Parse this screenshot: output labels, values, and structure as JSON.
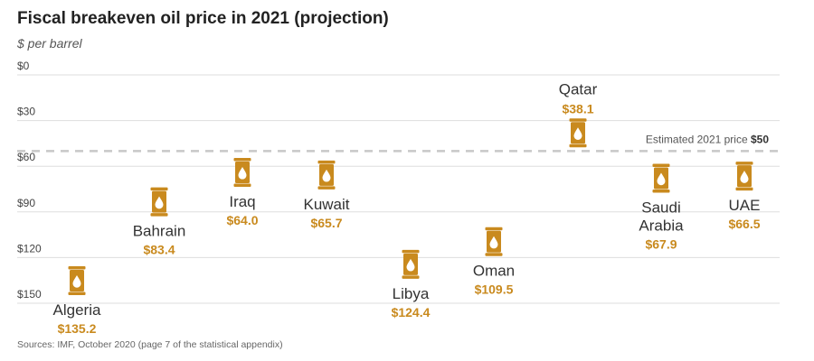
{
  "header": {
    "title": "Fiscal breakeven oil price in 2021 (projection)",
    "subtitle": "$ per barrel"
  },
  "source": "Sources: IMF, October 2020 (page 7 of the statistical appendix)",
  "reference": {
    "label": "Estimated 2021 price",
    "value_label": "$50"
  },
  "colors": {
    "barrel": "#c98a1e",
    "value_text": "#c98a1e",
    "grid": "#dddddd",
    "reference_line": "#c8c8c8"
  },
  "icon": "oil-barrel-icon",
  "chart_data": {
    "type": "scatter",
    "title": "Fiscal breakeven oil price in 2021 (projection)",
    "subtitle": "$ per barrel",
    "ylabel": "$ per barrel",
    "y_inverted": true,
    "ylim": [
      0,
      150
    ],
    "y_ticks": [
      0,
      30,
      60,
      90,
      120,
      150
    ],
    "y_tick_labels": [
      "$0",
      "$30",
      "$60",
      "$90",
      "$120",
      "$150"
    ],
    "grid": true,
    "reference": {
      "value": 50,
      "label": "Estimated 2021 price",
      "value_label": "$50"
    },
    "points": [
      {
        "name": "Algeria",
        "value": 135.2,
        "label": "$135.2",
        "label_pos": "below"
      },
      {
        "name": "Bahrain",
        "value": 83.4,
        "label": "$83.4",
        "label_pos": "below"
      },
      {
        "name": "Iraq",
        "value": 64.0,
        "label": "$64.0",
        "label_pos": "below"
      },
      {
        "name": "Kuwait",
        "value": 65.7,
        "label": "$65.7",
        "label_pos": "below"
      },
      {
        "name": "Libya",
        "value": 124.4,
        "label": "$124.4",
        "label_pos": "below"
      },
      {
        "name": "Oman",
        "value": 109.5,
        "label": "$109.5",
        "label_pos": "below"
      },
      {
        "name": "Qatar",
        "value": 38.1,
        "label": "$38.1",
        "label_pos": "above"
      },
      {
        "name": "Saudi Arabia",
        "name_lines": [
          "Saudi",
          "Arabia"
        ],
        "value": 67.9,
        "label": "$67.9",
        "label_pos": "below"
      },
      {
        "name": "UAE",
        "value": 66.5,
        "label": "$66.5",
        "label_pos": "below"
      }
    ]
  }
}
